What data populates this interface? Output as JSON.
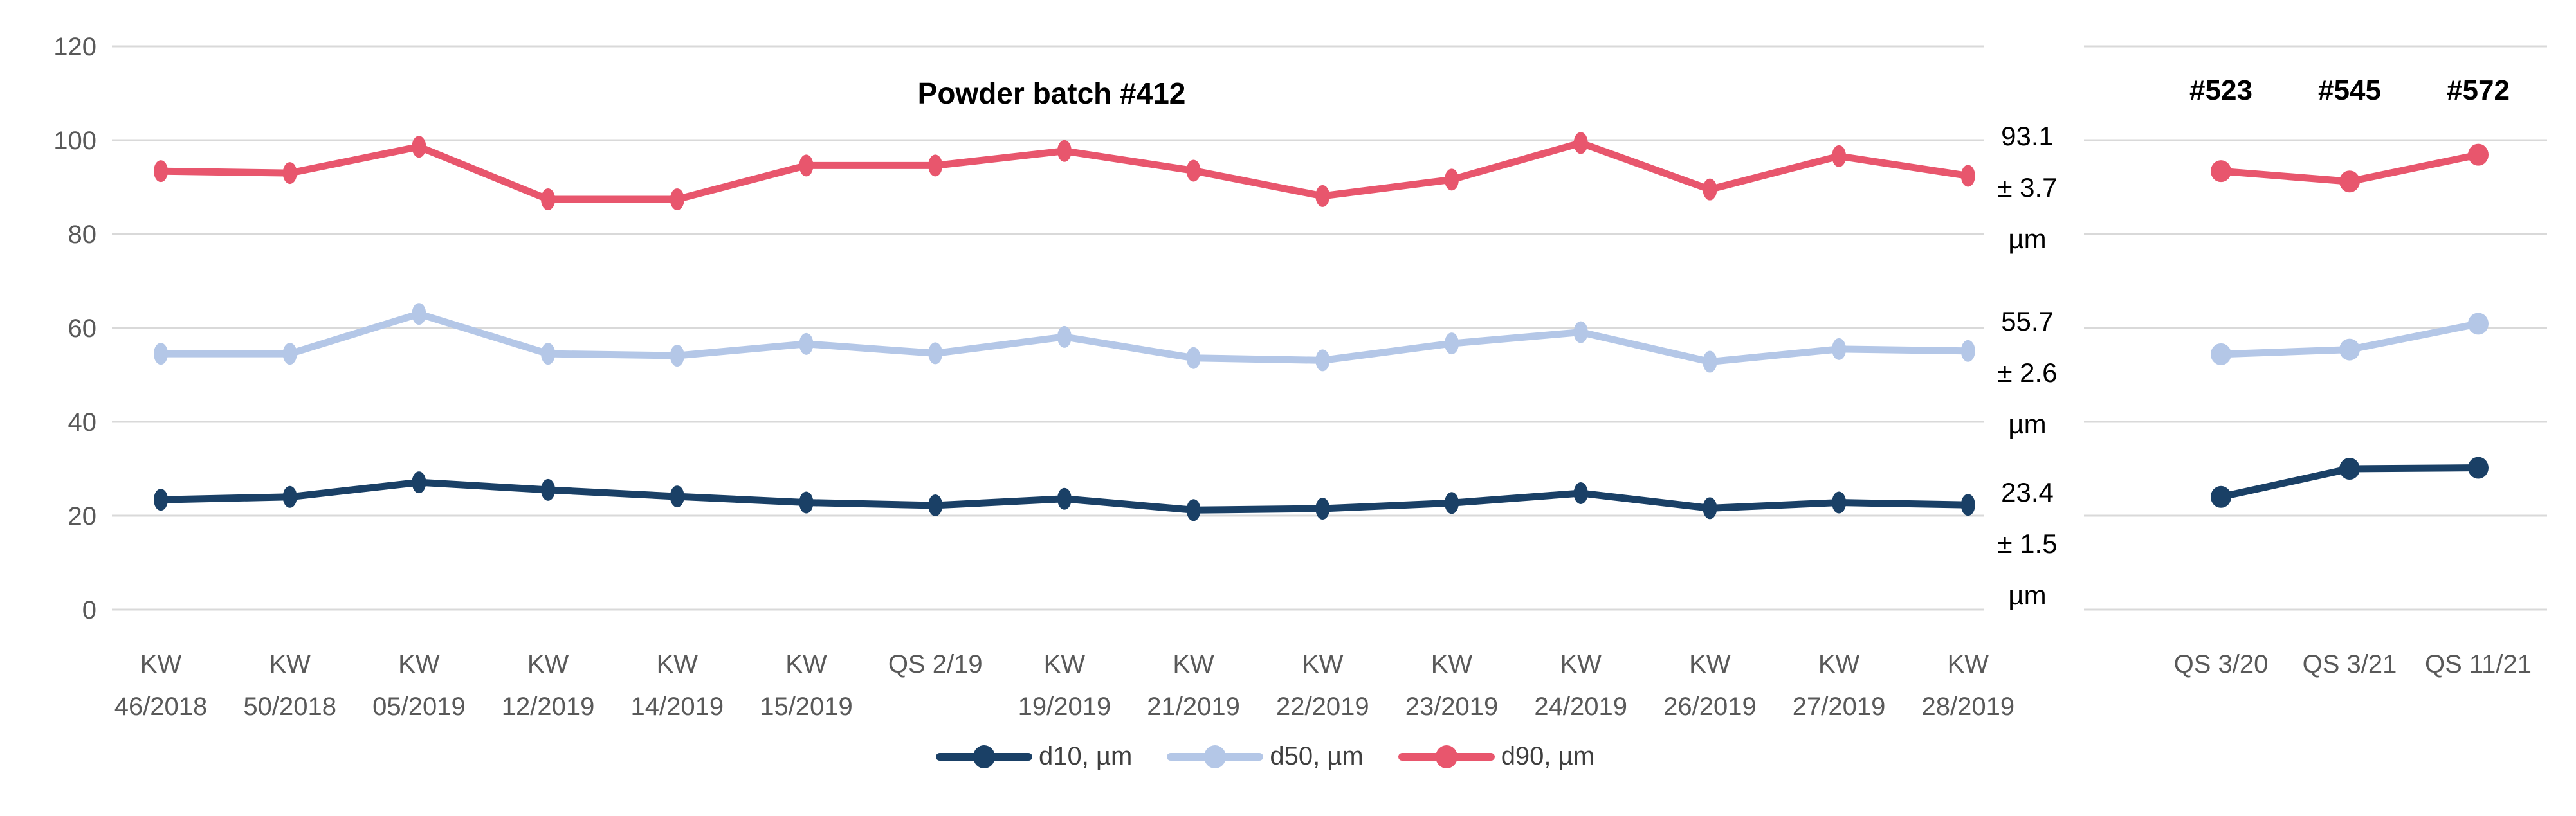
{
  "chart_data": {
    "type": "line",
    "title": "Powder batch #412",
    "batch_headers": [
      "#523",
      "#545",
      "#572"
    ],
    "y_axis": {
      "min": 0,
      "max": 120,
      "tick_step": 20,
      "ticks": [
        0,
        20,
        40,
        60,
        80,
        100,
        120
      ]
    },
    "grid": true,
    "legend_position": "bottom",
    "colors": {
      "d10": "#1A4066",
      "d50": "#B4C7E7",
      "d90": "#E8566D",
      "gridline": "#D9D9D9",
      "axis_text": "#595959",
      "legend_text": "#3F3F3F",
      "title_text": "#000000"
    },
    "legend": [
      {
        "series": "d10",
        "label": "d10, µm"
      },
      {
        "series": "d50",
        "label": "d50, µm"
      },
      {
        "series": "d90",
        "label": "d90, µm"
      }
    ],
    "panels": [
      {
        "name": "main",
        "categories": [
          "KW 46/2018",
          "KW 50/2018",
          "KW 05/2019",
          "KW 12/2019",
          "KW 14/2019",
          "KW 15/2019",
          "QS 2/19",
          "KW 19/2019",
          "KW 21/2019",
          "KW 22/2019",
          "KW 23/2019",
          "KW 24/2019",
          "KW 26/2019",
          "KW 27/2019",
          "KW 28/2019"
        ],
        "series": [
          {
            "key": "d10",
            "name": "d10, µm",
            "values": [
              23.4,
              24.0,
              27.1,
              25.5,
              24.1,
              22.8,
              22.2,
              23.6,
              21.2,
              21.5,
              22.7,
              24.8,
              21.6,
              22.8,
              22.3
            ]
          },
          {
            "key": "d50",
            "name": "d50, µm",
            "values": [
              54.5,
              54.5,
              63.0,
              54.5,
              54.1,
              56.6,
              54.6,
              58.1,
              53.6,
              53.1,
              56.7,
              59.1,
              52.8,
              55.5,
              55.1
            ]
          },
          {
            "key": "d90",
            "name": "d90, µm",
            "values": [
              93.4,
              93.0,
              98.6,
              87.4,
              87.4,
              94.6,
              94.6,
              97.7,
              93.5,
              88.1,
              91.6,
              99.4,
              89.5,
              96.6,
              92.4
            ]
          }
        ]
      },
      {
        "name": "qs-batches",
        "categories": [
          "QS 3/20",
          "QS 3/21",
          "QS 11/21"
        ],
        "series": [
          {
            "key": "d10",
            "name": "d10, µm",
            "values": [
              24.0,
              30.0,
              30.2
            ]
          },
          {
            "key": "d50",
            "name": "d50, µm",
            "values": [
              54.4,
              55.4,
              60.9
            ]
          },
          {
            "key": "d90",
            "name": "d90, µm",
            "values": [
              93.4,
              91.2,
              96.9
            ]
          }
        ]
      }
    ],
    "annotations": [
      {
        "series": "d90",
        "value": "93.1",
        "pm": "± 3.7",
        "unit": "µm"
      },
      {
        "series": "d50",
        "value": "55.7",
        "pm": "± 2.6",
        "unit": "µm"
      },
      {
        "series": "d10",
        "value": "23.4",
        "pm": "± 1.5",
        "unit": "µm"
      }
    ]
  }
}
